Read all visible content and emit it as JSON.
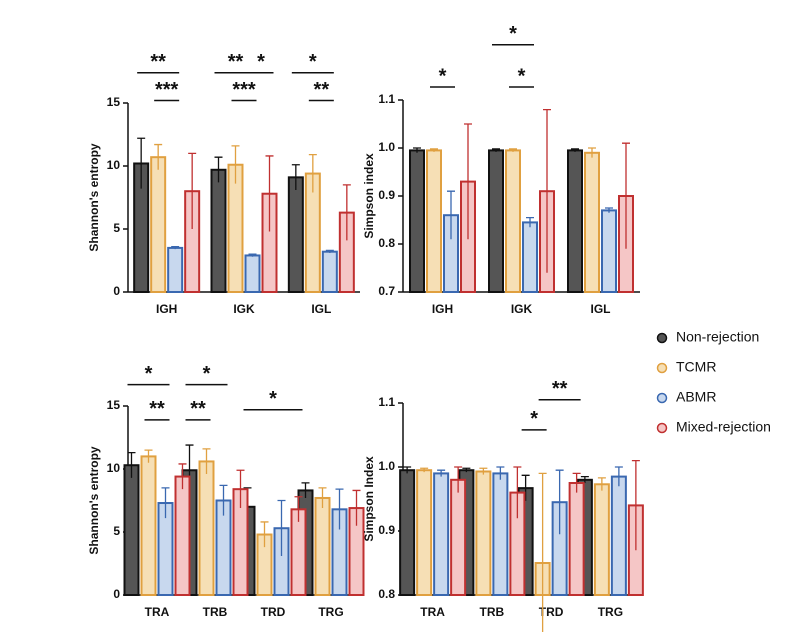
{
  "chart_data": [
    {
      "type": "bar",
      "ylabel": "Shannon's entropy",
      "categories": [
        "IGH",
        "IGK",
        "IGL"
      ],
      "series": [
        {
          "name": "Non-rejection",
          "color": "#555555",
          "edge": "#111111",
          "values": [
            10.2,
            9.7,
            9.1
          ],
          "errors": [
            2.0,
            1.0,
            1.0
          ]
        },
        {
          "name": "TCMR",
          "color": "#f6dfb5",
          "edge": "#e0a040",
          "values": [
            10.7,
            10.1,
            9.4
          ],
          "errors": [
            1.0,
            1.5,
            1.5
          ]
        },
        {
          "name": "ABMR",
          "color": "#c8d8ee",
          "edge": "#3a68b0",
          "values": [
            3.5,
            2.9,
            3.2
          ],
          "errors": [
            0.1,
            0.1,
            0.1
          ]
        },
        {
          "name": "Mixed-rejection",
          "color": "#f5c6c6",
          "edge": "#c03030",
          "values": [
            8.0,
            7.8,
            6.3
          ],
          "errors": [
            3.0,
            3.0,
            2.2
          ]
        }
      ],
      "ylim": [
        0,
        15
      ],
      "yticks": [
        0,
        5,
        10,
        15
      ],
      "annotations": [
        {
          "text": "**",
          "category": 0,
          "from": 0,
          "to": 2,
          "y": 17.4
        },
        {
          "text": "***",
          "category": 0,
          "from": 1,
          "to": 2,
          "y": 15.2
        },
        {
          "text": "**",
          "category": 1,
          "from": 0,
          "to": 2,
          "y": 17.4
        },
        {
          "text": "*",
          "category": 1,
          "from": 2,
          "to": 3,
          "y": 17.4
        },
        {
          "text": "***",
          "category": 1,
          "from": 1,
          "to": 2,
          "y": 15.2
        },
        {
          "text": "*",
          "category": 2,
          "from": 0,
          "to": 2,
          "y": 17.4
        },
        {
          "text": "**",
          "category": 2,
          "from": 1,
          "to": 2,
          "y": 15.2
        }
      ]
    },
    {
      "type": "bar",
      "ylabel": "Simpson index",
      "categories": [
        "IGH",
        "IGK",
        "IGL"
      ],
      "series": [
        {
          "name": "Non-rejection",
          "color": "#555555",
          "edge": "#111111",
          "values": [
            0.995,
            0.995,
            0.995
          ],
          "errors": [
            0.005,
            0.003,
            0.003
          ]
        },
        {
          "name": "TCMR",
          "color": "#f6dfb5",
          "edge": "#e0a040",
          "values": [
            0.995,
            0.995,
            0.99
          ],
          "errors": [
            0.003,
            0.003,
            0.01
          ]
        },
        {
          "name": "ABMR",
          "color": "#c8d8ee",
          "edge": "#3a68b0",
          "values": [
            0.86,
            0.845,
            0.87
          ],
          "errors": [
            0.05,
            0.01,
            0.005
          ]
        },
        {
          "name": "Mixed-rejection",
          "color": "#f5c6c6",
          "edge": "#c03030",
          "values": [
            0.93,
            0.91,
            0.9
          ],
          "errors": [
            0.12,
            0.17,
            0.11
          ]
        }
      ],
      "ylim": [
        0.7,
        1.1
      ],
      "yticks": [
        0.7,
        0.8,
        0.9,
        {
          "value": 1,
          "label": "1.0"
        },
        1.1
      ],
      "annotations": [
        {
          "text": "*",
          "category": 0,
          "from": 1,
          "to": 2,
          "y": 1.127
        },
        {
          "text": "*",
          "category": 1,
          "from": 0,
          "to": 2,
          "y": 1.215
        },
        {
          "text": "*",
          "category": 1,
          "from": 1,
          "to": 2,
          "y": 1.127
        }
      ]
    },
    {
      "type": "bar",
      "ylabel": "Shannon's entropy",
      "categories": [
        "TRA",
        "TRB",
        "TRD",
        "TRG"
      ],
      "series": [
        {
          "name": "Non-rejection",
          "color": "#555555",
          "edge": "#111111",
          "values": [
            10.3,
            9.9,
            7.0,
            8.3
          ],
          "errors": [
            1.0,
            2.0,
            1.5,
            0.6
          ]
        },
        {
          "name": "TCMR",
          "color": "#f6dfb5",
          "edge": "#e0a040",
          "values": [
            11.0,
            10.6,
            4.8,
            7.7
          ],
          "errors": [
            0.5,
            1.0,
            1.0,
            0.8
          ]
        },
        {
          "name": "ABMR",
          "color": "#c8d8ee",
          "edge": "#3a68b0",
          "values": [
            7.3,
            7.5,
            5.3,
            6.8
          ],
          "errors": [
            1.2,
            1.2,
            2.2,
            1.6
          ]
        },
        {
          "name": "Mixed-rejection",
          "color": "#f5c6c6",
          "edge": "#c03030",
          "values": [
            9.4,
            8.4,
            6.8,
            6.9
          ],
          "errors": [
            1.0,
            1.5,
            1.0,
            1.4
          ]
        }
      ],
      "ylim": [
        0,
        15
      ],
      "yticks": [
        0,
        5,
        10,
        15
      ],
      "annotations": [
        {
          "text": "*",
          "category": 0,
          "from": 0,
          "to": 2,
          "y": 16.7
        },
        {
          "text": "**",
          "category": 0,
          "from": 1,
          "to": 2,
          "y": 13.9
        },
        {
          "text": "*",
          "category": 1,
          "from": 0,
          "to": 2,
          "y": 16.7
        },
        {
          "text": "**",
          "category": 1,
          "from": 0,
          "to": 1,
          "y": 13.9
        },
        {
          "text": "*",
          "category": 2,
          "from": 0,
          "to": 3,
          "y": 14.7
        }
      ]
    },
    {
      "type": "bar",
      "ylabel": "Simpson Index",
      "categories": [
        "TRA",
        "TRB",
        "TRD",
        "TRG"
      ],
      "series": [
        {
          "name": "Non-rejection",
          "color": "#555555",
          "edge": "#111111",
          "values": [
            0.995,
            0.995,
            0.967,
            0.98
          ],
          "errors": [
            0.005,
            0.003,
            0.02,
            0.005
          ]
        },
        {
          "name": "TCMR",
          "color": "#f6dfb5",
          "edge": "#e0a040",
          "values": [
            0.995,
            0.993,
            0.85,
            0.973
          ],
          "errors": [
            0.003,
            0.005,
            0.14,
            0.01
          ]
        },
        {
          "name": "ABMR",
          "color": "#c8d8ee",
          "edge": "#3a68b0",
          "values": [
            0.99,
            0.99,
            0.945,
            0.985
          ],
          "errors": [
            0.005,
            0.01,
            0.05,
            0.015
          ]
        },
        {
          "name": "Mixed-rejection",
          "color": "#f5c6c6",
          "edge": "#c03030",
          "values": [
            0.98,
            0.96,
            0.975,
            0.94
          ],
          "errors": [
            0.02,
            0.04,
            0.015,
            0.07
          ]
        }
      ],
      "ylim": [
        0.8,
        1.1
      ],
      "yticks": [
        0.8,
        0.9,
        {
          "value": 1,
          "label": "1.0"
        },
        1.1
      ],
      "annotations": [
        {
          "text": "*",
          "category": 2,
          "from": 0,
          "to": 1,
          "y": 1.058
        },
        {
          "text": "**",
          "category": 2,
          "from": 1,
          "to": 3,
          "y": 1.105
        }
      ]
    }
  ]
}
